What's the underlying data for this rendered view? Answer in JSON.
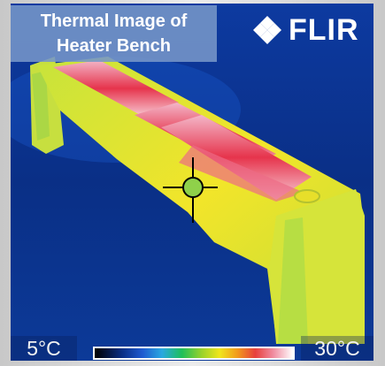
{
  "image": {
    "title_line1": "Thermal Image of",
    "title_line2": "Heater Bench",
    "logo_text": "FLIR"
  },
  "scale": {
    "min_label": "5°C",
    "max_label": "30°C"
  },
  "colors": {
    "background_cold": "#0a2f86",
    "bench_warm": "#c8e23a",
    "bench_hot": "#f6ea2a",
    "pad_hot": "#e5394b",
    "pad_peak": "#f7c9d4"
  }
}
